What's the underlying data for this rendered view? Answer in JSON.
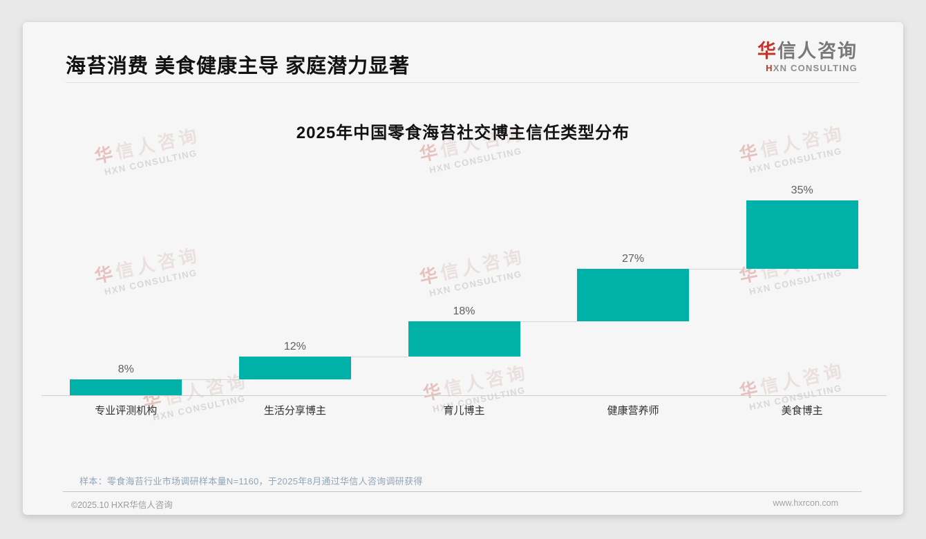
{
  "page": {
    "background": "#e9e9e9",
    "card_background": "#f6f6f6"
  },
  "header": {
    "title": "海苔消费 美食健康主导 家庭潜力显著"
  },
  "logo": {
    "cn_first": "华",
    "cn_rest": "信人咨询",
    "en_first": "H",
    "en_rest": "XN CONSULTING"
  },
  "watermark": {
    "line1": "华信人咨询",
    "line2": "HXN CONSULTING"
  },
  "chart_data": {
    "type": "bar",
    "subtype": "waterfall",
    "title": "2025年中国零食海苔社交博主信任类型分布",
    "categories": [
      "专业评测机构",
      "生活分享博主",
      "育儿博主",
      "健康营养师",
      "美食博主"
    ],
    "values": [
      8,
      12,
      18,
      27,
      35
    ],
    "data_labels": [
      "8%",
      "12%",
      "18%",
      "27%",
      "35%"
    ],
    "cumulative": [
      8,
      20,
      38,
      65,
      100
    ],
    "unit": "%",
    "ylim": [
      0,
      100
    ],
    "bar_color": "#00b1a8",
    "connector_color": "#d4d4d4",
    "grid": false,
    "legend": false,
    "xlabel": "",
    "ylabel": ""
  },
  "note": {
    "text": "样本：零食海苔行业市场调研样本量N=1160，于2025年8月通过华信人咨询调研获得"
  },
  "footer": {
    "left": "©2025.10 HXR华信人咨询",
    "right": "www.hxrcon.com"
  }
}
